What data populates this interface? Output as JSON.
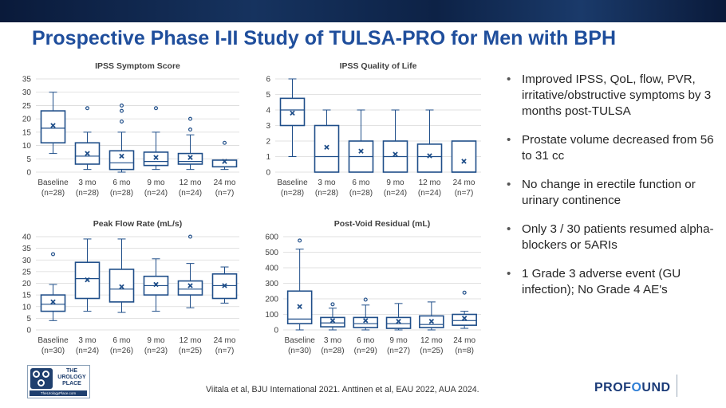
{
  "slide": {
    "title": "Prospective Phase I-II Study of TULSA-PRO for Men with BPH",
    "bullets": [
      "Improved IPSS, QoL, flow, PVR, irritative/obstructive symptoms by 3 months post-TULSA",
      "Prostate volume decreased from 56 to 31 cc",
      "No change in erectile function or urinary continence",
      "Only 3 / 30 patients resumed alpha-blockers or 5ARIs",
      "1 Grade 3 adverse event (GU infection); No Grade 4 AE's"
    ],
    "citation": "Viitala et al, BJU International 2021.   Anttinen et al, EAU 2022, AUA 2024.",
    "logo_left": {
      "line1": "THE",
      "line2": "UROLOGY",
      "line3": "PLACE",
      "url": "TheUrologyPlace.com"
    },
    "logo_right": {
      "pre": "PROF",
      "mid": "O",
      "post": "UND"
    }
  },
  "colors": {
    "title": "#1f4e9c",
    "box": "#1f4e89",
    "banner": "#0f2447",
    "grid": "#d9d9d9"
  },
  "chart_data": [
    {
      "type": "boxplot",
      "title": "IPSS Symptom Score",
      "ylim": [
        0,
        35
      ],
      "yticks": [
        0,
        5,
        10,
        15,
        20,
        25,
        30,
        35
      ],
      "categories": [
        "Baseline",
        "3 mo",
        "6 mo",
        "9 mo",
        "12 mo",
        "24 mo"
      ],
      "n_labels": [
        "(n=28)",
        "(n=28)",
        "(n=28)",
        "(n=24)",
        "(n=24)",
        "(n=7)"
      ],
      "boxes": [
        {
          "min": 7,
          "q1": 11,
          "median": 16.5,
          "q3": 23,
          "max": 30,
          "mean": 17.5,
          "outliers": []
        },
        {
          "min": 1,
          "q1": 3,
          "median": 6,
          "q3": 11,
          "max": 15,
          "mean": 7,
          "outliers": [
            24
          ]
        },
        {
          "min": 0,
          "q1": 1,
          "median": 3.5,
          "q3": 8,
          "max": 15,
          "mean": 6,
          "outliers": [
            19,
            23,
            25
          ]
        },
        {
          "min": 1,
          "q1": 2.5,
          "median": 4,
          "q3": 7.5,
          "max": 15,
          "mean": 5.5,
          "outliers": [
            24
          ]
        },
        {
          "min": 1,
          "q1": 3,
          "median": 4,
          "q3": 7,
          "max": 14,
          "mean": 5.5,
          "outliers": [
            16,
            20
          ]
        },
        {
          "min": 1,
          "q1": 2,
          "median": 2,
          "q3": 4.5,
          "max": 4.5,
          "mean": 4,
          "outliers": [
            11
          ]
        }
      ]
    },
    {
      "type": "boxplot",
      "title": "IPSS Quality of Life",
      "ylim": [
        0,
        6
      ],
      "yticks": [
        0,
        1,
        2,
        3,
        4,
        5,
        6
      ],
      "categories": [
        "Baseline",
        "3 mo",
        "6 mo",
        "9 mo",
        "12 mo",
        "24 mo"
      ],
      "n_labels": [
        "(n=28)",
        "(n=28)",
        "(n=28)",
        "(n=24)",
        "(n=24)",
        "(n=7)"
      ],
      "boxes": [
        {
          "min": 1,
          "q1": 3,
          "median": 4,
          "q3": 4.75,
          "max": 6,
          "mean": 3.8,
          "outliers": []
        },
        {
          "min": 0,
          "q1": 0,
          "median": 1,
          "q3": 3,
          "max": 4,
          "mean": 1.6,
          "outliers": []
        },
        {
          "min": 0,
          "q1": 0,
          "median": 1,
          "q3": 2,
          "max": 4,
          "mean": 1.35,
          "outliers": []
        },
        {
          "min": 0,
          "q1": 0,
          "median": 1,
          "q3": 2,
          "max": 4,
          "mean": 1.15,
          "outliers": []
        },
        {
          "min": 0,
          "q1": 0,
          "median": 1,
          "q3": 1.8,
          "max": 4,
          "mean": 1.05,
          "outliers": []
        },
        {
          "min": 0,
          "q1": 0,
          "median": 0,
          "q3": 2,
          "max": 2,
          "mean": 0.7,
          "outliers": []
        }
      ]
    },
    {
      "type": "boxplot",
      "title": "Peak Flow Rate (mL/s)",
      "ylim": [
        0,
        40
      ],
      "yticks": [
        0,
        5,
        10,
        15,
        20,
        25,
        30,
        35,
        40
      ],
      "categories": [
        "Baseline",
        "3 mo",
        "6 mo",
        "9 mo",
        "12 mo",
        "24 mo"
      ],
      "n_labels": [
        "(n=30)",
        "(n=24)",
        "(n=26)",
        "(n=23)",
        "(n=25)",
        "(n=7)"
      ],
      "boxes": [
        {
          "min": 4,
          "q1": 8,
          "median": 11,
          "q3": 15,
          "max": 19.5,
          "mean": 12,
          "outliers": [
            32.5
          ]
        },
        {
          "min": 8,
          "q1": 13.5,
          "median": 22,
          "q3": 29,
          "max": 39,
          "mean": 21.5,
          "outliers": []
        },
        {
          "min": 7.5,
          "q1": 12,
          "median": 17.5,
          "q3": 26,
          "max": 39,
          "mean": 18.5,
          "outliers": []
        },
        {
          "min": 8,
          "q1": 15,
          "median": 19,
          "q3": 23,
          "max": 30.5,
          "mean": 19.5,
          "outliers": []
        },
        {
          "min": 9.5,
          "q1": 15,
          "median": 17.5,
          "q3": 21,
          "max": 28.5,
          "mean": 19,
          "outliers": [
            40
          ]
        },
        {
          "min": 11.5,
          "q1": 13.5,
          "median": 19,
          "q3": 24,
          "max": 27,
          "mean": 19,
          "outliers": []
        }
      ]
    },
    {
      "type": "boxplot",
      "title": "Post-Void Residual (mL)",
      "ylim": [
        0,
        600
      ],
      "yticks": [
        0,
        100,
        200,
        300,
        400,
        500,
        600
      ],
      "categories": [
        "Baseline",
        "3 mo",
        "6 mo",
        "9 mo",
        "12 mo",
        "24 mo"
      ],
      "n_labels": [
        "(n=30)",
        "(n=28)",
        "(n=29)",
        "(n=27)",
        "(n=25)",
        "(n=8)"
      ],
      "boxes": [
        {
          "min": 0,
          "q1": 40,
          "median": 70,
          "q3": 250,
          "max": 520,
          "mean": 150,
          "outliers": [
            575
          ]
        },
        {
          "min": 0,
          "q1": 20,
          "median": 45,
          "q3": 80,
          "max": 140,
          "mean": 60,
          "outliers": [
            165
          ]
        },
        {
          "min": 0,
          "q1": 15,
          "median": 40,
          "q3": 80,
          "max": 160,
          "mean": 60,
          "outliers": [
            195
          ]
        },
        {
          "min": 0,
          "q1": 10,
          "median": 40,
          "q3": 80,
          "max": 170,
          "mean": 55,
          "outliers": []
        },
        {
          "min": 0,
          "q1": 15,
          "median": 35,
          "q3": 90,
          "max": 180,
          "mean": 55,
          "outliers": []
        },
        {
          "min": 10,
          "q1": 30,
          "median": 60,
          "q3": 100,
          "max": 120,
          "mean": 75,
          "outliers": [
            240
          ]
        }
      ]
    }
  ]
}
